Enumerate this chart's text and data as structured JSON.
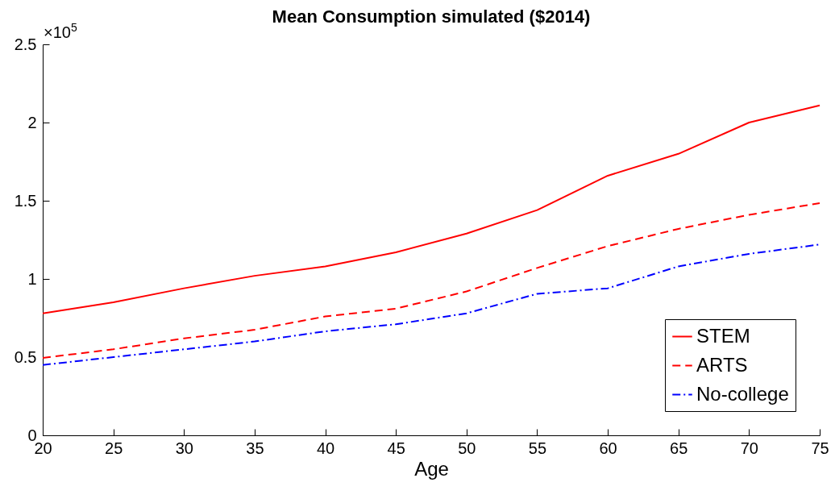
{
  "chart_data": {
    "type": "line",
    "title": "Mean Consumption simulated ($2014)",
    "xlabel": "Age",
    "x": [
      20,
      25,
      30,
      35,
      40,
      45,
      50,
      55,
      60,
      65,
      70,
      75
    ],
    "series": [
      {
        "name": "STEM",
        "color": "#ff0000",
        "line_style": "solid",
        "values": [
          0.78,
          0.85,
          0.94,
          1.02,
          1.08,
          1.17,
          1.29,
          1.44,
          1.66,
          1.8,
          2.0,
          2.11
        ]
      },
      {
        "name": "ARTS",
        "color": "#ff0000",
        "line_style": "dashed",
        "values": [
          0.495,
          0.55,
          0.62,
          0.675,
          0.76,
          0.81,
          0.92,
          1.07,
          1.21,
          1.32,
          1.41,
          1.485
        ]
      },
      {
        "name": "No-college",
        "color": "#0000ff",
        "line_style": "dashdot",
        "values": [
          0.45,
          0.5,
          0.55,
          0.6,
          0.665,
          0.71,
          0.78,
          0.905,
          0.94,
          1.08,
          1.16,
          1.22
        ]
      }
    ],
    "xlim": [
      20,
      75
    ],
    "xticks": [
      20,
      25,
      30,
      35,
      40,
      45,
      50,
      55,
      60,
      65,
      70,
      75
    ],
    "ylim": [
      0,
      2.5
    ],
    "yticks": [
      0,
      0.5,
      1,
      1.5,
      2,
      2.5
    ],
    "annotations": [
      "×10$^{5}$"
    ],
    "legend": "bottom right",
    "grid": false,
    "marker": "none"
  }
}
